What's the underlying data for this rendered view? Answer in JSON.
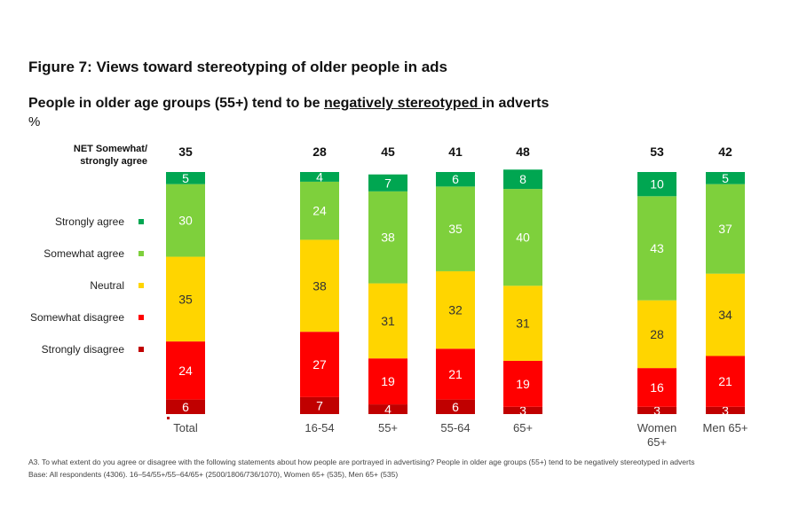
{
  "figure_title": "Figure 7: Views toward stereotyping of older people in ads",
  "subtitle": {
    "pre": "People in older age groups (55+) tend to be ",
    "underlined": "negatively stereotyped ",
    "post": "in adverts"
  },
  "unit": "%",
  "net_label_line1": "NET Somewhat/",
  "net_label_line2": "strongly agree",
  "footnote": {
    "question": "A3. To what extent do you agree or disagree with the following statements about how people are portrayed in advertising? People in older age groups (55+) tend to be negatively stereotyped in adverts",
    "base": "Base: All respondents (4306). 16–54/55+/55–64/65+ (2500/1806/736/1070), Women 65+ (535), Men 65+ (535)"
  },
  "colors": {
    "strongly_agree": "#00a651",
    "somewhat_agree": "#7ed03c",
    "neutral": "#ffd500",
    "somewhat_disagree": "#ff0000",
    "strongly_disagree": "#c00000"
  },
  "chart_data": {
    "type": "bar",
    "stacked": true,
    "categories": [
      "Total",
      "16-54",
      "55+",
      "55-64",
      "65+",
      "Women\n65+",
      "Men 65+"
    ],
    "net_agree": [
      35,
      28,
      45,
      41,
      48,
      53,
      42
    ],
    "series": [
      {
        "name": "Strongly disagree",
        "values": [
          6,
          7,
          4,
          6,
          3,
          3,
          3
        ]
      },
      {
        "name": "Somewhat disagree",
        "values": [
          24,
          27,
          19,
          21,
          19,
          16,
          21
        ]
      },
      {
        "name": "Neutral",
        "values": [
          35,
          38,
          31,
          32,
          31,
          28,
          34
        ]
      },
      {
        "name": "Somewhat agree",
        "values": [
          30,
          24,
          38,
          35,
          40,
          43,
          37
        ]
      },
      {
        "name": "Strongly agree",
        "values": [
          5,
          4,
          7,
          6,
          8,
          10,
          5
        ]
      }
    ],
    "legend_order": [
      "Strongly agree",
      "Somewhat agree",
      "Neutral",
      "Somewhat disagree",
      "Strongly disagree"
    ],
    "legend_position": "left",
    "grid": false
  }
}
